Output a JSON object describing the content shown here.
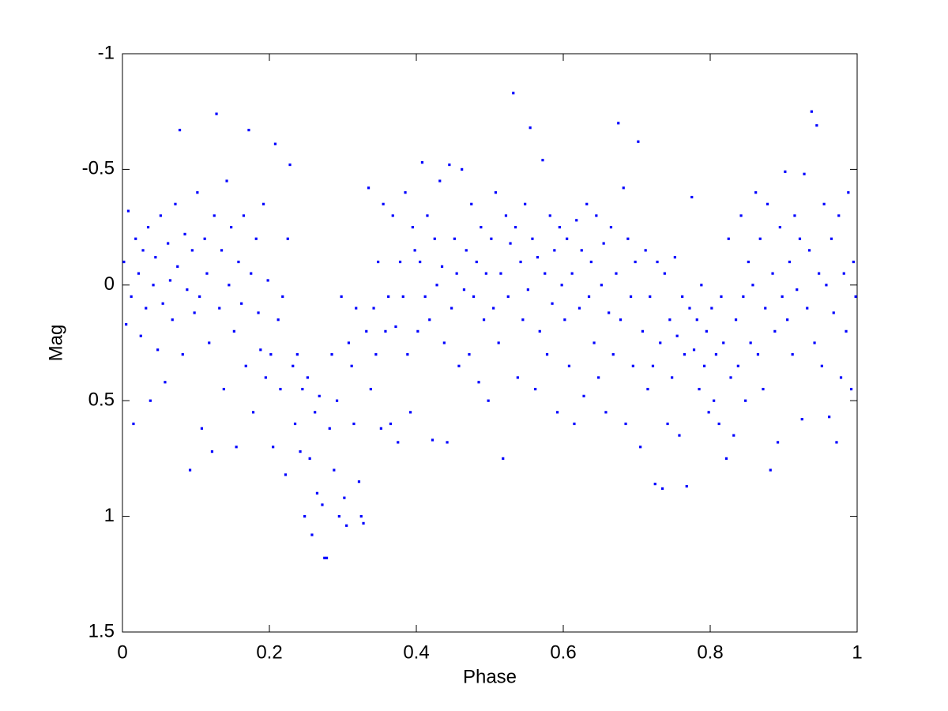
{
  "chart_data": {
    "type": "scatter",
    "x_label": "Phase",
    "y_label": "Mag",
    "xlim": [
      0,
      1
    ],
    "xticks": [
      0,
      0.2,
      0.4,
      0.6,
      0.8,
      1
    ],
    "ylim": [
      -1,
      1.5
    ],
    "yticks": [
      -1,
      -0.5,
      0,
      0.5,
      1,
      1.5
    ],
    "y_reversed": true,
    "grid": false,
    "color": "#0000ff",
    "x": [
      0.002,
      0.005,
      0.008,
      0.012,
      0.015,
      0.018,
      0.022,
      0.025,
      0.028,
      0.032,
      0.035,
      0.038,
      0.042,
      0.045,
      0.048,
      0.052,
      0.055,
      0.058,
      0.062,
      0.065,
      0.068,
      0.072,
      0.075,
      0.078,
      0.082,
      0.085,
      0.088,
      0.092,
      0.095,
      0.098,
      0.102,
      0.105,
      0.108,
      0.112,
      0.115,
      0.118,
      0.122,
      0.125,
      0.128,
      0.132,
      0.135,
      0.138,
      0.142,
      0.145,
      0.148,
      0.152,
      0.155,
      0.158,
      0.162,
      0.165,
      0.168,
      0.172,
      0.175,
      0.178,
      0.182,
      0.185,
      0.188,
      0.192,
      0.195,
      0.198,
      0.202,
      0.205,
      0.208,
      0.212,
      0.215,
      0.218,
      0.222,
      0.225,
      0.228,
      0.232,
      0.235,
      0.238,
      0.242,
      0.245,
      0.248,
      0.252,
      0.255,
      0.258,
      0.262,
      0.265,
      0.268,
      0.272,
      0.275,
      0.278,
      0.282,
      0.285,
      0.288,
      0.292,
      0.295,
      0.298,
      0.302,
      0.305,
      0.308,
      0.312,
      0.315,
      0.318,
      0.322,
      0.325,
      0.328,
      0.332,
      0.335,
      0.338,
      0.342,
      0.345,
      0.348,
      0.352,
      0.355,
      0.358,
      0.362,
      0.365,
      0.368,
      0.372,
      0.375,
      0.378,
      0.382,
      0.385,
      0.388,
      0.392,
      0.395,
      0.398,
      0.402,
      0.405,
      0.408,
      0.412,
      0.415,
      0.418,
      0.422,
      0.425,
      0.428,
      0.432,
      0.435,
      0.438,
      0.442,
      0.445,
      0.448,
      0.452,
      0.455,
      0.458,
      0.462,
      0.465,
      0.468,
      0.472,
      0.475,
      0.478,
      0.482,
      0.485,
      0.488,
      0.492,
      0.495,
      0.498,
      0.502,
      0.505,
      0.508,
      0.512,
      0.515,
      0.518,
      0.522,
      0.525,
      0.528,
      0.532,
      0.535,
      0.538,
      0.542,
      0.545,
      0.548,
      0.552,
      0.555,
      0.558,
      0.562,
      0.565,
      0.568,
      0.572,
      0.575,
      0.578,
      0.582,
      0.585,
      0.588,
      0.592,
      0.595,
      0.598,
      0.602,
      0.605,
      0.608,
      0.612,
      0.615,
      0.618,
      0.622,
      0.625,
      0.628,
      0.632,
      0.635,
      0.638,
      0.642,
      0.645,
      0.648,
      0.652,
      0.655,
      0.658,
      0.662,
      0.665,
      0.668,
      0.672,
      0.675,
      0.678,
      0.682,
      0.685,
      0.688,
      0.692,
      0.695,
      0.698,
      0.702,
      0.705,
      0.708,
      0.712,
      0.715,
      0.718,
      0.722,
      0.725,
      0.728,
      0.732,
      0.735,
      0.738,
      0.742,
      0.745,
      0.748,
      0.752,
      0.755,
      0.758,
      0.762,
      0.765,
      0.768,
      0.772,
      0.775,
      0.778,
      0.782,
      0.785,
      0.788,
      0.792,
      0.795,
      0.798,
      0.802,
      0.805,
      0.808,
      0.812,
      0.815,
      0.818,
      0.822,
      0.825,
      0.828,
      0.832,
      0.835,
      0.838,
      0.842,
      0.845,
      0.848,
      0.852,
      0.855,
      0.858,
      0.862,
      0.865,
      0.868,
      0.872,
      0.875,
      0.878,
      0.882,
      0.885,
      0.888,
      0.892,
      0.895,
      0.898,
      0.902,
      0.905,
      0.908,
      0.912,
      0.915,
      0.918,
      0.922,
      0.925,
      0.928,
      0.932,
      0.935,
      0.938,
      0.942,
      0.945,
      0.948,
      0.952,
      0.955,
      0.958,
      0.962,
      0.965,
      0.968,
      0.972,
      0.975,
      0.978,
      0.982,
      0.985,
      0.988,
      0.992,
      0.995,
      0.998
    ],
    "values": [
      -0.1,
      0.17,
      -0.32,
      0.05,
      0.6,
      -0.2,
      -0.05,
      0.22,
      -0.15,
      0.1,
      -0.25,
      0.5,
      0.0,
      -0.12,
      0.28,
      -0.3,
      0.08,
      0.42,
      -0.18,
      -0.02,
      0.15,
      -0.35,
      -0.08,
      -0.67,
      0.3,
      -0.22,
      0.02,
      0.8,
      -0.15,
      0.12,
      -0.4,
      0.05,
      0.62,
      -0.2,
      -0.05,
      0.25,
      0.72,
      -0.3,
      -0.74,
      0.1,
      -0.15,
      0.45,
      -0.45,
      0.0,
      -0.25,
      0.2,
      0.7,
      -0.1,
      0.08,
      -0.3,
      0.35,
      -0.67,
      -0.05,
      0.55,
      -0.2,
      0.12,
      0.28,
      -0.35,
      0.4,
      -0.02,
      0.3,
      0.7,
      -0.61,
      0.15,
      0.45,
      0.05,
      0.82,
      -0.2,
      -0.52,
      0.35,
      0.6,
      0.3,
      0.72,
      0.45,
      1.0,
      0.4,
      0.75,
      1.08,
      0.55,
      0.9,
      0.48,
      0.95,
      1.18,
      1.18,
      0.62,
      0.3,
      0.8,
      0.5,
      1.0,
      0.05,
      0.92,
      1.04,
      0.25,
      0.35,
      0.6,
      0.1,
      0.85,
      1.0,
      1.03,
      0.2,
      -0.42,
      0.45,
      0.1,
      0.3,
      -0.1,
      0.62,
      -0.35,
      0.2,
      0.05,
      0.6,
      -0.3,
      0.18,
      0.68,
      -0.1,
      0.05,
      -0.4,
      0.3,
      0.55,
      -0.25,
      -0.15,
      0.2,
      -0.1,
      -0.53,
      0.05,
      -0.3,
      0.15,
      0.67,
      -0.2,
      0.0,
      -0.45,
      -0.08,
      0.25,
      0.68,
      -0.52,
      0.1,
      -0.2,
      -0.05,
      0.35,
      -0.5,
      0.02,
      -0.15,
      0.3,
      -0.35,
      0.05,
      -0.1,
      0.42,
      -0.25,
      0.15,
      -0.05,
      0.5,
      -0.2,
      0.1,
      -0.4,
      0.25,
      -0.05,
      0.75,
      -0.3,
      0.05,
      -0.18,
      -0.83,
      -0.25,
      0.4,
      -0.1,
      0.15,
      -0.35,
      0.02,
      -0.68,
      -0.2,
      0.45,
      -0.12,
      0.2,
      -0.54,
      -0.05,
      0.3,
      -0.3,
      0.08,
      -0.15,
      0.55,
      -0.25,
      0.0,
      0.15,
      -0.2,
      0.35,
      -0.05,
      0.6,
      -0.28,
      0.1,
      -0.15,
      0.48,
      -0.35,
      0.05,
      -0.1,
      0.25,
      -0.3,
      0.4,
      0.0,
      -0.18,
      0.55,
      0.12,
      -0.25,
      0.3,
      -0.05,
      -0.7,
      0.15,
      -0.42,
      0.6,
      -0.2,
      0.05,
      0.35,
      -0.1,
      -0.62,
      0.7,
      0.2,
      -0.15,
      0.45,
      0.05,
      0.35,
      0.86,
      -0.1,
      0.25,
      0.88,
      -0.05,
      0.6,
      0.15,
      0.4,
      -0.12,
      0.22,
      0.65,
      0.05,
      0.3,
      0.87,
      0.1,
      -0.38,
      0.28,
      0.15,
      0.45,
      0.0,
      0.35,
      0.2,
      0.55,
      0.1,
      0.5,
      0.3,
      0.6,
      0.05,
      0.25,
      0.75,
      -0.2,
      0.4,
      0.65,
      0.15,
      0.35,
      -0.3,
      0.05,
      0.5,
      -0.1,
      0.25,
      0.0,
      -0.4,
      0.3,
      -0.2,
      0.45,
      0.1,
      -0.35,
      0.8,
      -0.05,
      0.2,
      0.68,
      -0.25,
      0.05,
      -0.49,
      0.15,
      -0.1,
      0.3,
      -0.3,
      0.02,
      -0.2,
      0.58,
      -0.48,
      0.1,
      -0.15,
      -0.75,
      0.25,
      -0.69,
      -0.05,
      0.35,
      -0.35,
      0.0,
      0.57,
      -0.2,
      0.12,
      0.68,
      -0.3,
      0.4,
      -0.05,
      0.2,
      -0.4,
      0.45,
      -0.1,
      0.05
    ]
  }
}
